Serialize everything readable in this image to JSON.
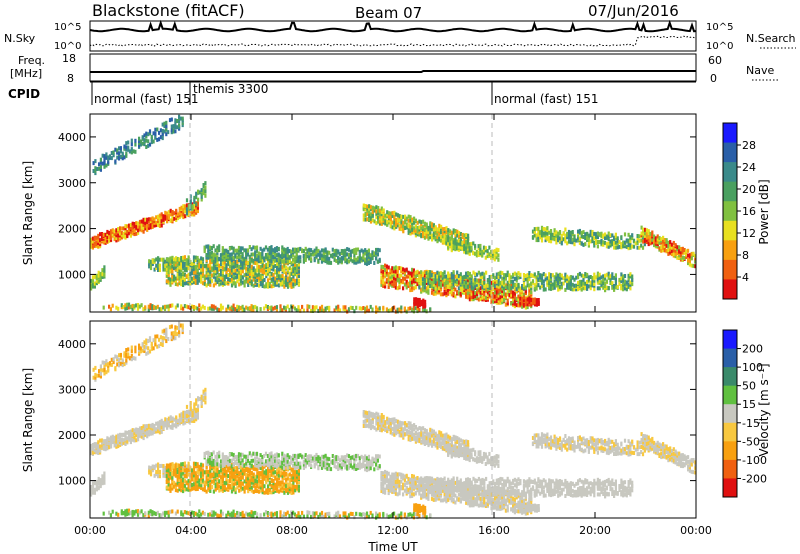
{
  "header": {
    "site": "Blackstone (fitACF)",
    "beam": "Beam 07",
    "date": "07/Jun/2016"
  },
  "top_panels": {
    "nsky_label": "N.Sky",
    "nsearch_label": "N.Search",
    "n_ticks_left": [
      "10^5",
      "10^0"
    ],
    "n_ticks_right": [
      "10^5",
      "10^0"
    ],
    "freq_label": "Freq.",
    "freq_unit": "[MHz]",
    "freq_ticks": [
      "18",
      "8"
    ],
    "nave_label": "Nave",
    "nave_ticks": [
      "60",
      "0"
    ],
    "cpid_label": "CPID",
    "cpid_segments": [
      {
        "label": "normal (fast) 151",
        "start": 0.0
      },
      {
        "label": "themis 3300",
        "start": 4.0
      },
      {
        "label": "normal (fast) 151",
        "start": 16.0
      }
    ]
  },
  "colors": {
    "power": [
      "#1a1aff",
      "#2a5fa8",
      "#3a8a8a",
      "#4aa060",
      "#80c040",
      "#e8e020",
      "#f8a010",
      "#f06010",
      "#e01010"
    ],
    "velocity": [
      "#1a1aff",
      "#2a5fa8",
      "#3a8a6a",
      "#60c040",
      "#c8c8c0",
      "#f8c840",
      "#f8a010",
      "#f06010",
      "#e01010"
    ]
  },
  "chart_data": [
    {
      "type": "heatmap",
      "quantity": "power",
      "ylabel": "Slant Range [km]",
      "xlim": [
        0,
        24
      ],
      "ylim": [
        180,
        4500
      ],
      "y_ticks": [
        1000,
        2000,
        3000,
        4000
      ],
      "x_ticks": [
        0,
        4,
        8,
        12,
        16,
        20,
        24
      ],
      "colorbar_label": "Power [dB]",
      "colorbar_ticks": [
        "4",
        "8",
        "12",
        "16",
        "20",
        "24",
        "28"
      ],
      "colorbar_range": [
        0,
        30
      ]
    },
    {
      "type": "heatmap",
      "quantity": "velocity",
      "ylabel": "Slant Range [km]",
      "xlabel": "Time UT",
      "xlim": [
        0,
        24
      ],
      "ylim": [
        180,
        4500
      ],
      "y_ticks": [
        1000,
        2000,
        3000,
        4000
      ],
      "x_ticks": [
        0,
        4,
        8,
        12,
        16,
        20,
        24
      ],
      "x_tick_labels": [
        "00:00",
        "04:00",
        "08:00",
        "12:00",
        "16:00",
        "20:00",
        "00:00"
      ],
      "colorbar_label": "Velocity [m s⁻¹]",
      "colorbar_ticks": [
        "200",
        "100",
        "50",
        "15",
        "-15",
        "-50",
        "-100",
        "-200"
      ]
    }
  ]
}
